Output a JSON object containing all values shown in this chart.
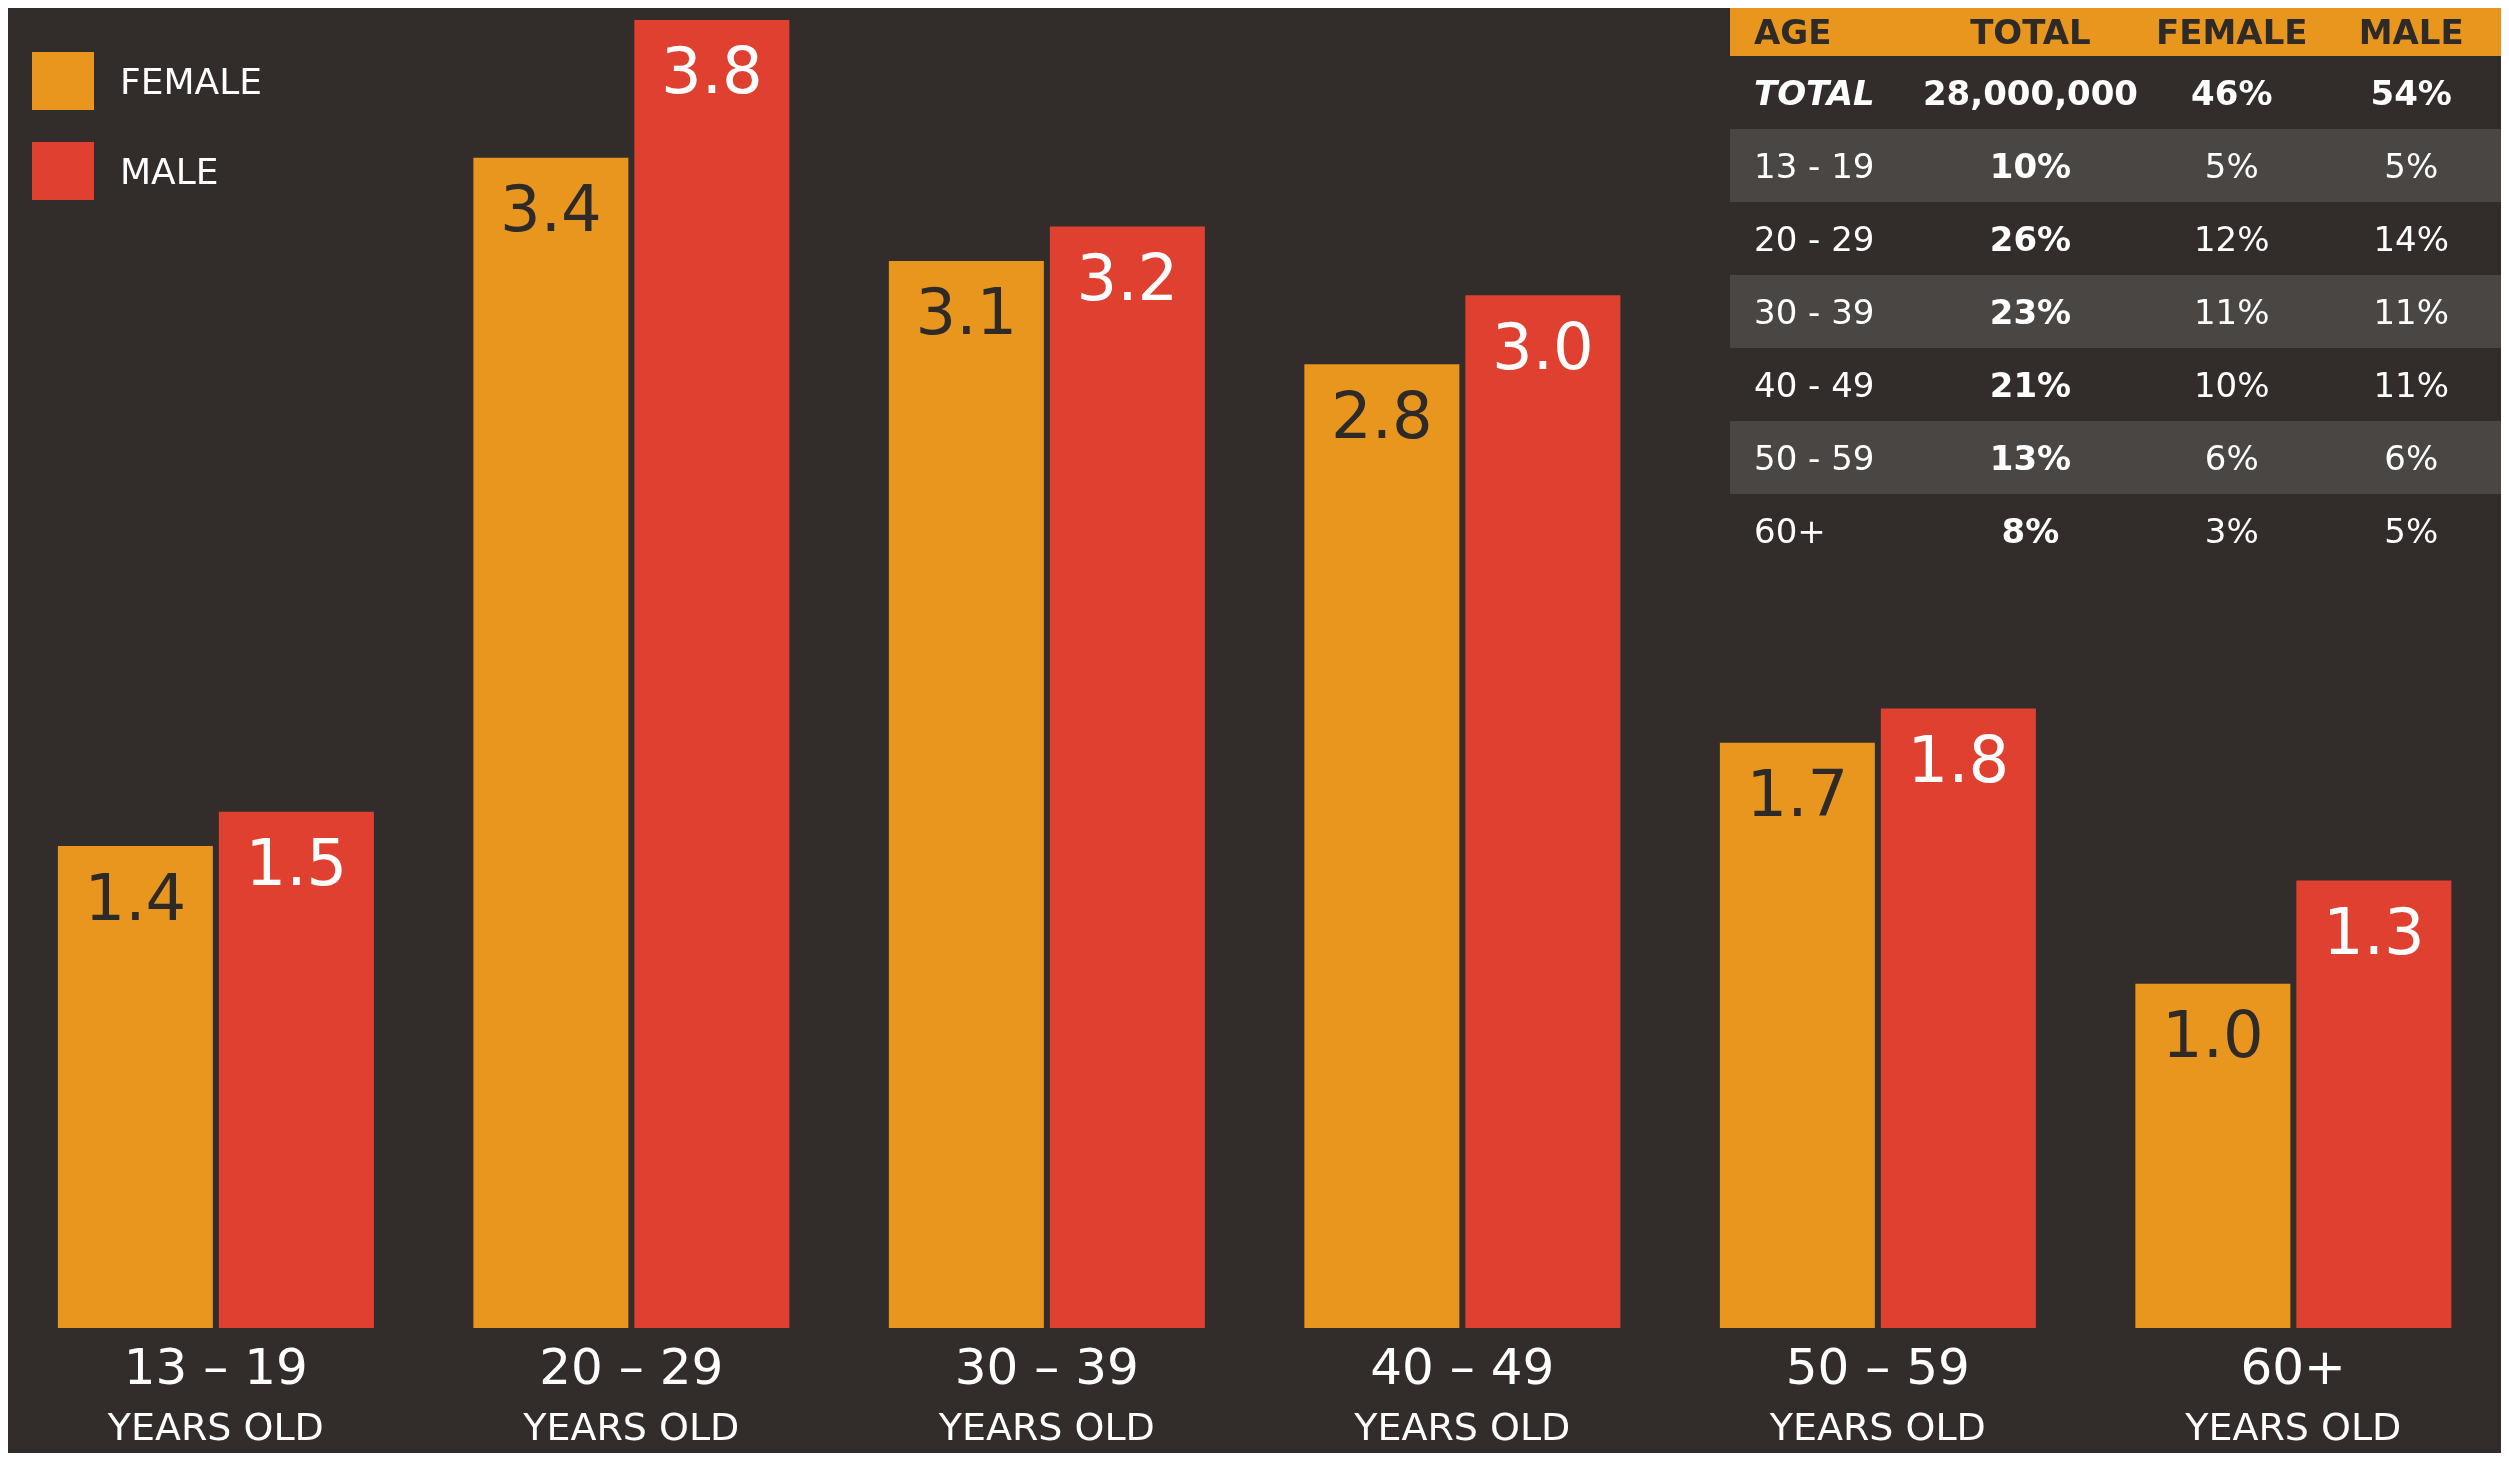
{
  "chart_data": {
    "type": "bar",
    "categories": [
      "13 – 19\nYEARS OLD",
      "20 – 29\nYEARS OLD",
      "30 – 39\nYEARS OLD",
      "40 – 49\nYEARS OLD",
      "50 – 59\nYEARS OLD",
      "60+\nYEARS OLD"
    ],
    "series": [
      {
        "name": "FEMALE",
        "color": "#e8961e",
        "values": [
          1.4,
          3.4,
          3.1,
          2.8,
          1.7,
          1.0
        ],
        "value_labels": [
          "1.4",
          "3.4",
          "3.1",
          "2.8",
          "1.7",
          "1.0"
        ]
      },
      {
        "name": "MALE",
        "color": "#e04030",
        "values": [
          1.5,
          3.8,
          3.2,
          3.0,
          1.8,
          1.3
        ],
        "value_labels": [
          "1.5",
          "3.8",
          "3.2",
          "3.0",
          "1.8",
          "1.3"
        ]
      }
    ],
    "legend": "top left",
    "annotations": [
      "AGE",
      "TOTAL",
      "FEMALE",
      "MALE",
      "TOTAL",
      "28,000,000",
      "46%",
      "54%",
      "13 - 19",
      "10%",
      "5%",
      "5%",
      "20 - 29",
      "26%",
      "12%",
      "14%",
      "30 - 39",
      "23%",
      "11%",
      "11%",
      "40 - 49",
      "21%",
      "10%",
      "11%",
      "50 - 59",
      "13%",
      "6%",
      "6%",
      "60+",
      "8%",
      "3%",
      "5%"
    ]
  }
}
